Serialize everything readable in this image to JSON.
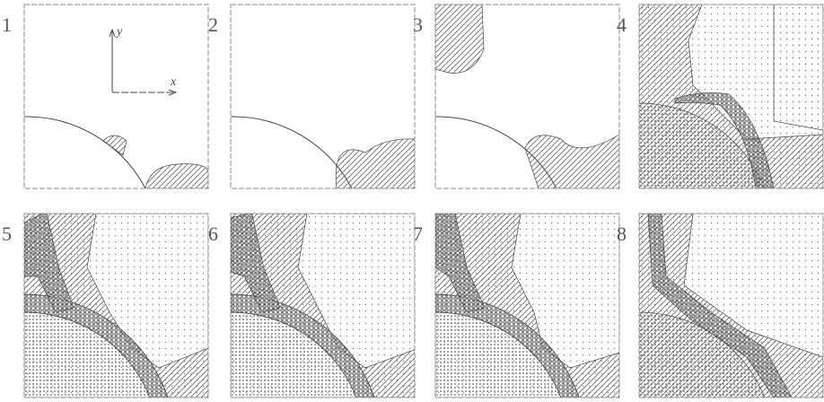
{
  "panels": [
    {
      "label": "1"
    },
    {
      "label": "2"
    },
    {
      "label": "3"
    },
    {
      "label": "4"
    },
    {
      "label": "5"
    },
    {
      "label": "6"
    },
    {
      "label": "7"
    },
    {
      "label": "8"
    }
  ],
  "axes": {
    "x": "x",
    "y": "y"
  }
}
